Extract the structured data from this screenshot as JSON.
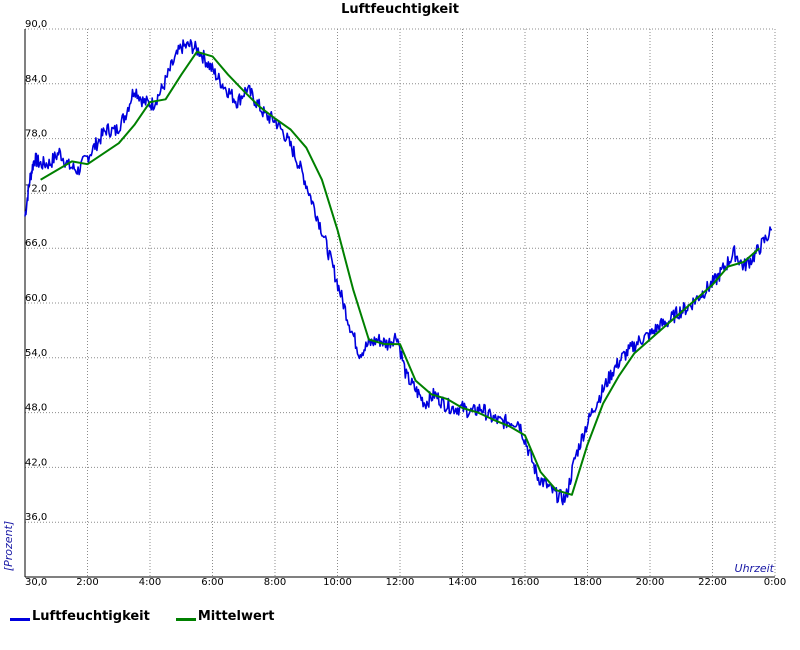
{
  "chart_data": {
    "type": "line",
    "title": "Luftfeuchtigkeit",
    "xlabel": "Uhrzeit",
    "ylabel": "[Prozent]",
    "xlim": [
      0,
      24
    ],
    "ylim": [
      30,
      90
    ],
    "x_ticks": [
      "0:00",
      "2:00",
      "4:00",
      "6:00",
      "8:00",
      "10:00",
      "12:00",
      "14:00",
      "16:00",
      "18:00",
      "20:00",
      "22:00",
      "0:00"
    ],
    "y_ticks": [
      "30,0",
      "36,0",
      "42,0",
      "48,0",
      "54,0",
      "60,0",
      "66,0",
      "72,0",
      "78,0",
      "84,0",
      "90,0"
    ],
    "grid": true,
    "legend_position": "bottom-left",
    "series": [
      {
        "name": "Luftfeuchtigkeit",
        "color": "#0000dd",
        "x": [
          0.0,
          0.15,
          0.3,
          0.5,
          0.8,
          1.1,
          1.4,
          1.7,
          2.0,
          2.3,
          2.6,
          2.9,
          3.2,
          3.5,
          3.8,
          4.1,
          4.4,
          4.7,
          5.0,
          5.3,
          5.6,
          5.9,
          6.2,
          6.5,
          6.8,
          7.1,
          7.4,
          7.7,
          8.0,
          8.3,
          8.6,
          8.9,
          9.2,
          9.5,
          9.8,
          10.1,
          10.4,
          10.7,
          11.0,
          11.3,
          11.6,
          11.9,
          12.2,
          12.5,
          12.8,
          13.1,
          13.4,
          13.7,
          14.0,
          14.3,
          14.6,
          14.9,
          15.2,
          15.5,
          15.8,
          16.1,
          16.4,
          16.7,
          17.0,
          17.3,
          17.6,
          17.9,
          18.2,
          18.5,
          18.8,
          19.1,
          19.4,
          19.7,
          20.0,
          20.3,
          20.6,
          20.9,
          21.2,
          21.5,
          21.8,
          22.1,
          22.4,
          22.7,
          23.0,
          23.3,
          23.6,
          23.9
        ],
        "y": [
          69.5,
          73.5,
          75.8,
          75.2,
          75.3,
          76.5,
          75.0,
          74.5,
          76.0,
          77.5,
          79.0,
          78.8,
          80.5,
          83.5,
          82.0,
          81.8,
          83.5,
          86.0,
          88.0,
          88.2,
          87.5,
          86.0,
          84.5,
          83.2,
          82.0,
          83.5,
          82.0,
          80.5,
          80.0,
          78.5,
          76.5,
          74.0,
          71.0,
          68.0,
          64.5,
          61.0,
          57.5,
          54.5,
          55.5,
          56.0,
          55.5,
          56.5,
          52.0,
          50.5,
          49.0,
          50.0,
          49.0,
          48.5,
          48.5,
          48.0,
          48.5,
          47.5,
          47.0,
          47.0,
          47.0,
          44.0,
          41.0,
          40.0,
          39.0,
          38.5,
          43.0,
          46.0,
          48.5,
          50.5,
          52.5,
          54.0,
          55.0,
          56.0,
          56.5,
          57.5,
          58.0,
          59.0,
          59.5,
          60.5,
          61.5,
          62.5,
          64.0,
          65.5,
          64.0,
          65.0,
          66.5,
          68.0
        ]
      },
      {
        "name": "Mittelwert",
        "color": "#008000",
        "x": [
          0.5,
          1.5,
          2.0,
          3.0,
          3.5,
          4.0,
          4.5,
          5.0,
          5.5,
          6.0,
          6.5,
          7.0,
          7.5,
          8.0,
          8.5,
          9.0,
          9.5,
          10.0,
          10.5,
          11.0,
          11.5,
          12.0,
          12.5,
          13.0,
          13.5,
          14.0,
          14.5,
          15.0,
          15.5,
          16.0,
          16.5,
          17.0,
          17.5,
          18.0,
          18.5,
          19.0,
          19.5,
          20.0,
          20.5,
          21.0,
          21.5,
          22.0,
          22.5,
          23.0,
          23.5
        ],
        "y": [
          73.5,
          75.5,
          75.2,
          77.5,
          79.5,
          82.0,
          82.3,
          85.0,
          87.5,
          87.0,
          85.0,
          83.2,
          81.5,
          80.2,
          79.0,
          77.0,
          73.5,
          68.0,
          61.5,
          56.0,
          55.5,
          55.5,
          51.5,
          50.0,
          49.5,
          48.5,
          48.0,
          47.2,
          46.5,
          45.5,
          41.5,
          39.5,
          39.0,
          44.5,
          49.0,
          52.0,
          54.5,
          56.0,
          57.5,
          59.0,
          60.5,
          62.0,
          64.0,
          64.5,
          66.0
        ]
      }
    ]
  }
}
